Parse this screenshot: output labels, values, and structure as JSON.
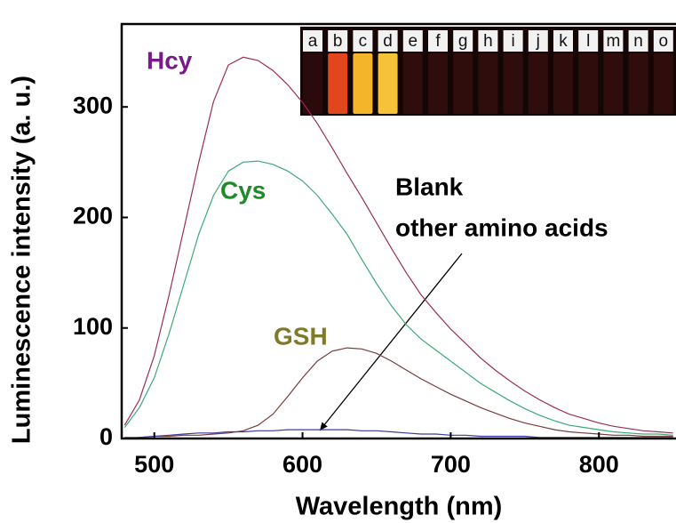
{
  "chart_data": {
    "type": "line",
    "xlabel": "Wavelength (nm)",
    "ylabel": "Luminescence intensity (a. u.)",
    "x": [
      480,
      490,
      500,
      510,
      520,
      530,
      540,
      550,
      560,
      570,
      580,
      590,
      600,
      610,
      620,
      630,
      640,
      650,
      660,
      670,
      680,
      690,
      700,
      710,
      720,
      730,
      740,
      750,
      760,
      770,
      780,
      790,
      800,
      810,
      820,
      830,
      840,
      850
    ],
    "series": [
      {
        "name": "Hcy",
        "color": "#9b2d5a",
        "label_color": "#7a1a8a",
        "values": [
          12,
          35,
          75,
          130,
          190,
          250,
          305,
          338,
          345,
          342,
          333,
          320,
          304,
          285,
          263,
          240,
          218,
          195,
          172,
          150,
          130,
          114,
          99,
          86,
          73,
          62,
          52,
          43,
          35,
          28,
          22,
          18,
          14,
          11,
          9,
          7,
          6,
          5
        ]
      },
      {
        "name": "Cys",
        "color": "#3caa78",
        "label_color": "#1e8a2a",
        "values": [
          10,
          28,
          55,
          95,
          140,
          185,
          220,
          242,
          250,
          251,
          248,
          242,
          233,
          220,
          203,
          185,
          162,
          140,
          120,
          103,
          90,
          80,
          70,
          60,
          50,
          42,
          34,
          27,
          21,
          16,
          12,
          10,
          8,
          6,
          5,
          4,
          4,
          3
        ]
      },
      {
        "name": "GSH",
        "color": "#7b3b3b",
        "label_color": "#7e7a28",
        "values": [
          1,
          1,
          2,
          2,
          3,
          3,
          4,
          5,
          7,
          12,
          22,
          38,
          55,
          70,
          79,
          82,
          81,
          77,
          70,
          62,
          54,
          47,
          40,
          34,
          28,
          23,
          18,
          14,
          11,
          8,
          6,
          5,
          4,
          3,
          3,
          2,
          2,
          2
        ]
      },
      {
        "name": null,
        "color": "#3a3aa0",
        "label_color": null,
        "values": [
          0,
          1,
          2,
          3,
          4,
          5,
          5,
          6,
          6,
          7,
          7,
          8,
          8,
          8,
          8,
          8,
          7,
          7,
          6,
          5,
          4,
          4,
          3,
          3,
          2,
          2,
          2,
          2,
          1,
          1,
          1,
          1,
          1,
          1,
          1,
          1,
          1,
          1
        ]
      }
    ],
    "annotation": [
      "Blank",
      "other amino acids"
    ],
    "xlim": [
      478,
      852
    ],
    "ylim": [
      0,
      375
    ],
    "xticks": [
      500,
      600,
      700,
      800
    ],
    "yticks": [
      0,
      100,
      200,
      300
    ],
    "inset_labels": [
      "a",
      "b",
      "c",
      "d",
      "e",
      "f",
      "g",
      "h",
      "i",
      "j",
      "k",
      "l",
      "m",
      "n",
      "o"
    ],
    "inset_colors": [
      "#2a0a0a",
      "#e2461c",
      "#f5b52a",
      "#f6c23a",
      "#2e0d0c",
      "#2e0d0c",
      "#2e0d0c",
      "#2e0d0c",
      "#2e0d0c",
      "#2e0d0c",
      "#2e0d0c",
      "#2e0d0c",
      "#2e0d0c",
      "#2e0d0c",
      "#2e0d0c"
    ]
  }
}
